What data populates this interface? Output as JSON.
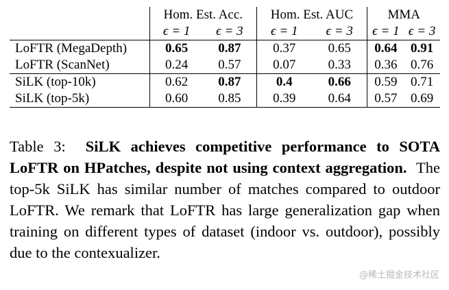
{
  "table": {
    "group_headers": [
      "Hom. Est. Acc.",
      "Hom. Est. AUC",
      "MMA"
    ],
    "sub_headers": [
      "ϵ = 1",
      "ϵ = 3",
      "ϵ = 1",
      "ϵ = 3",
      "ϵ = 1",
      "ϵ = 3"
    ],
    "rows": [
      {
        "name": "LoFTR (MegaDepth)",
        "values": [
          "0.65",
          "0.87",
          "0.37",
          "0.65",
          "0.64",
          "0.91"
        ],
        "bold": [
          true,
          true,
          false,
          false,
          true,
          true
        ]
      },
      {
        "name": "LoFTR (ScanNet)",
        "values": [
          "0.24",
          "0.57",
          "0.07",
          "0.33",
          "0.36",
          "0.76"
        ],
        "bold": [
          false,
          false,
          false,
          false,
          false,
          false
        ]
      },
      {
        "name": "SiLK (top-10k)",
        "values": [
          "0.62",
          "0.87",
          "0.4",
          "0.66",
          "0.59",
          "0.71"
        ],
        "bold": [
          false,
          true,
          true,
          true,
          false,
          false
        ]
      },
      {
        "name": "SiLK (top-5k)",
        "values": [
          "0.60",
          "0.85",
          "0.39",
          "0.64",
          "0.57",
          "0.69"
        ],
        "bold": [
          false,
          false,
          false,
          false,
          false,
          false
        ]
      }
    ]
  },
  "caption": {
    "label": "Table 3:",
    "bold_text": "SiLK achieves competitive performance to SOTA LoFTR on HPatches, despite not using context aggregation.",
    "body_text": "The top-5k SiLK has similar number of matches compared to outdoor LoFTR. We remark that LoFTR has large generalization gap when training on different types of dataset (indoor vs. outdoor), possibly due to the contexualizer."
  },
  "watermark": "@稀土掘金技术社区"
}
